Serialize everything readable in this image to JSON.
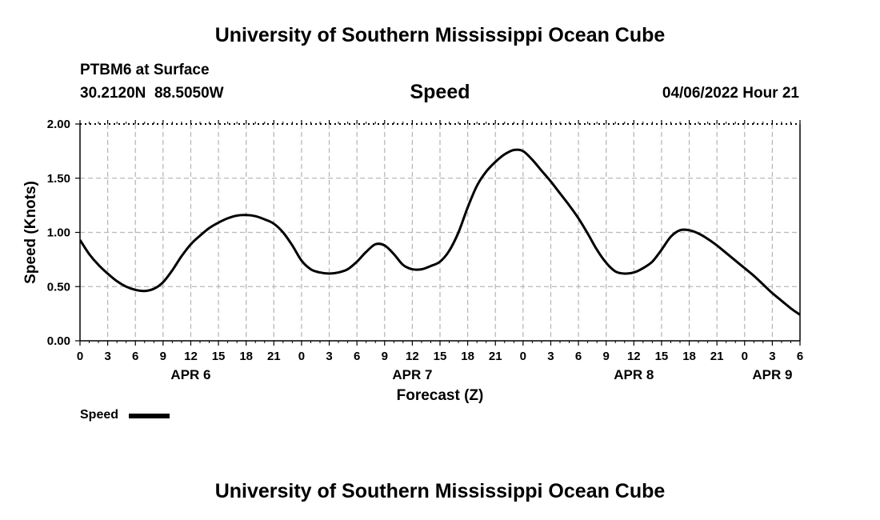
{
  "page": {
    "title_top": "University of Southern Mississippi Ocean Cube",
    "title_bottom": "University of Southern Mississippi Ocean Cube",
    "station": "PTBM6 at Surface",
    "coords": "30.2120N  88.5050W",
    "chart_title": "Speed",
    "timestamp": "04/06/2022 Hour 21"
  },
  "legend": {
    "label": "Speed",
    "color": "#000000"
  },
  "chart_data": {
    "type": "line",
    "title": "Speed",
    "xlabel": "Forecast (Z)",
    "ylabel": "Speed (Knots)",
    "xlim": [
      0,
      78
    ],
    "ylim": [
      0,
      2
    ],
    "yticks": [
      "0.00",
      "0.50",
      "1.00",
      "1.50",
      "2.00"
    ],
    "x_tick_labels": [
      "0",
      "3",
      "6",
      "9",
      "12",
      "15",
      "18",
      "21",
      "0",
      "3",
      "6",
      "9",
      "12",
      "15",
      "18",
      "21",
      "0",
      "3",
      "6",
      "9",
      "12",
      "15",
      "18",
      "21",
      "0",
      "3",
      "6"
    ],
    "date_labels": [
      {
        "label": "APR 6",
        "hour": 12
      },
      {
        "label": "APR 7",
        "hour": 36
      },
      {
        "label": "APR 8",
        "hour": 60
      },
      {
        "label": "APR 9",
        "hour": 75
      }
    ],
    "grid": true,
    "series": [
      {
        "name": "Speed",
        "x": [
          0,
          1,
          2,
          3,
          4,
          5,
          6,
          7,
          8,
          9,
          10,
          11,
          12,
          13,
          14,
          15,
          16,
          17,
          18,
          19,
          20,
          21,
          22,
          23,
          24,
          25,
          26,
          27,
          28,
          29,
          30,
          31,
          32,
          33,
          34,
          35,
          36,
          37,
          38,
          39,
          40,
          41,
          42,
          43,
          44,
          45,
          46,
          47,
          48,
          49,
          50,
          51,
          52,
          53,
          54,
          55,
          56,
          57,
          58,
          59,
          60,
          61,
          62,
          63,
          64,
          65,
          66,
          67,
          68,
          69,
          70,
          71,
          72,
          73,
          74,
          75,
          76,
          77,
          78
        ],
        "values": [
          0.93,
          0.8,
          0.7,
          0.62,
          0.55,
          0.5,
          0.47,
          0.46,
          0.48,
          0.54,
          0.65,
          0.78,
          0.89,
          0.97,
          1.04,
          1.09,
          1.13,
          1.155,
          1.16,
          1.15,
          1.12,
          1.08,
          1.0,
          0.88,
          0.74,
          0.66,
          0.63,
          0.62,
          0.63,
          0.66,
          0.73,
          0.82,
          0.89,
          0.88,
          0.8,
          0.7,
          0.66,
          0.66,
          0.69,
          0.73,
          0.83,
          1.0,
          1.23,
          1.43,
          1.56,
          1.65,
          1.72,
          1.76,
          1.75,
          1.67,
          1.57,
          1.47,
          1.36,
          1.25,
          1.13,
          0.99,
          0.84,
          0.72,
          0.64,
          0.62,
          0.63,
          0.67,
          0.73,
          0.84,
          0.96,
          1.02,
          1.02,
          0.99,
          0.94,
          0.88,
          0.81,
          0.74,
          0.67,
          0.6,
          0.52,
          0.44,
          0.37,
          0.3,
          0.24
        ]
      }
    ]
  }
}
